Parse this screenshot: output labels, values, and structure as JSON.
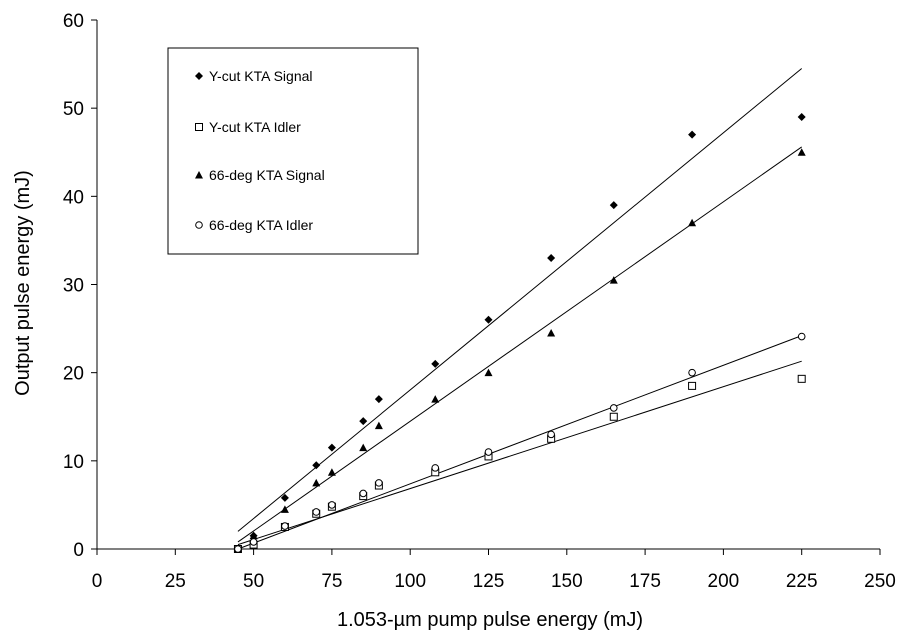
{
  "chart_data": {
    "type": "scatter",
    "title": "",
    "xlabel": "1.053-µm pump pulse energy (mJ)",
    "ylabel": "Output pulse energy (mJ)",
    "xlim": [
      0,
      250
    ],
    "ylim": [
      0,
      60
    ],
    "xticks": [
      0,
      25,
      50,
      75,
      100,
      125,
      150,
      175,
      200,
      225,
      250
    ],
    "yticks": [
      0,
      10,
      20,
      30,
      40,
      50,
      60
    ],
    "grid": false,
    "legend_position": "top-left",
    "series": [
      {
        "name": "Y-cut KTA Signal",
        "marker": "diamond-filled",
        "x": [
          45,
          50,
          60,
          70,
          75,
          85,
          90,
          108,
          125,
          145,
          165,
          190,
          225
        ],
        "y": [
          0,
          1.5,
          5.8,
          9.5,
          11.5,
          14.5,
          17,
          21,
          26,
          33,
          39,
          47,
          49
        ],
        "fit": {
          "x": [
            45,
            225
          ],
          "y": [
            2.0,
            54.5
          ]
        }
      },
      {
        "name": "Y-cut KTA Idler",
        "marker": "square-open",
        "x": [
          45,
          50,
          60,
          70,
          75,
          85,
          90,
          108,
          125,
          145,
          165,
          190,
          225
        ],
        "y": [
          0,
          0.5,
          2.5,
          4.0,
          4.8,
          6.0,
          7.2,
          8.7,
          10.5,
          12.5,
          15.0,
          18.5,
          19.3
        ],
        "fit": {
          "x": [
            45,
            225
          ],
          "y": [
            0.5,
            21.3
          ]
        }
      },
      {
        "name": "66-deg KTA Signal",
        "marker": "triangle-filled",
        "x": [
          45,
          50,
          60,
          70,
          75,
          85,
          90,
          108,
          125,
          145,
          165,
          190,
          225
        ],
        "y": [
          0,
          1.5,
          4.5,
          7.5,
          8.7,
          11.5,
          14,
          17,
          20,
          24.5,
          30.5,
          37,
          45
        ],
        "fit": {
          "x": [
            45,
            225
          ],
          "y": [
            0.8,
            45.6
          ]
        }
      },
      {
        "name": "66-deg KTA Idler",
        "marker": "circle-open",
        "x": [
          45,
          50,
          60,
          70,
          75,
          85,
          90,
          108,
          125,
          145,
          165,
          190,
          225
        ],
        "y": [
          0,
          0.8,
          2.6,
          4.2,
          5.0,
          6.3,
          7.5,
          9.2,
          11.0,
          13.0,
          16.0,
          20.0,
          24.1
        ],
        "fit": {
          "x": [
            45,
            225
          ],
          "y": [
            0.0,
            24.2
          ]
        }
      }
    ]
  }
}
